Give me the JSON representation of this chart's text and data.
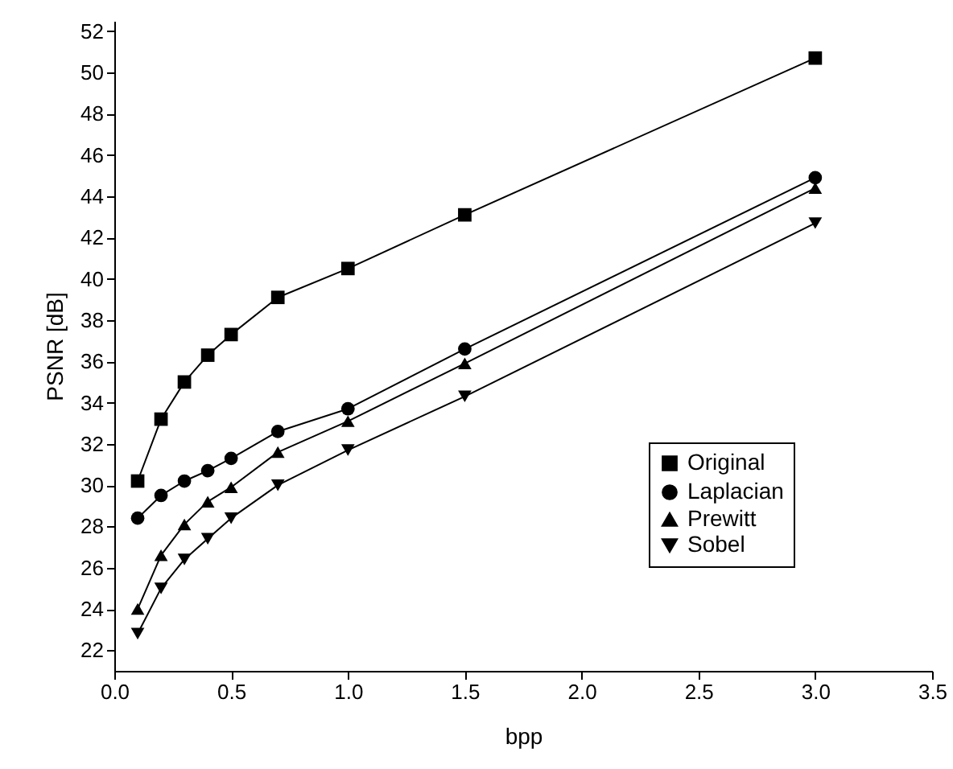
{
  "chart_data": {
    "type": "line",
    "xlabel": "bpp",
    "ylabel": "PSNR [dB]",
    "x": [
      0.1,
      0.2,
      0.3,
      0.4,
      0.5,
      0.7,
      1.0,
      1.5,
      3.0
    ],
    "xlim": [
      0,
      3.5
    ],
    "xticks": [
      {
        "value": 0,
        "label": "0.0"
      },
      {
        "value": 0.5,
        "label": "0.5"
      },
      {
        "value": 1,
        "label": "1.0"
      },
      {
        "value": 1.5,
        "label": "1.5"
      },
      {
        "value": 2,
        "label": "2.0"
      },
      {
        "value": 2.5,
        "label": "2.5"
      },
      {
        "value": 3,
        "label": "3.0"
      },
      {
        "value": 3.5,
        "label": "3.5"
      }
    ],
    "ylim": [
      21,
      52.5
    ],
    "yticks": [
      22,
      24,
      26,
      28,
      30,
      32,
      34,
      36,
      38,
      40,
      42,
      44,
      46,
      48,
      50,
      52
    ],
    "grid": false,
    "legend": "bottom right",
    "line_style": "solid",
    "series": [
      {
        "name": "Original",
        "color": "#000000",
        "marker": "square",
        "values": [
          30.2,
          33.2,
          35.0,
          36.3,
          37.3,
          39.1,
          40.5,
          43.1,
          50.7
        ]
      },
      {
        "name": "Laplacian",
        "color": "#000000",
        "marker": "circle",
        "values": [
          28.4,
          29.5,
          30.2,
          30.7,
          31.3,
          32.6,
          33.7,
          36.6,
          44.9
        ]
      },
      {
        "name": "Prewitt",
        "color": "#000000",
        "marker": "triangle",
        "values": [
          24.0,
          26.6,
          28.1,
          29.2,
          29.9,
          31.6,
          33.1,
          35.9,
          44.4
        ]
      },
      {
        "name": "Sobel",
        "color": "#000000",
        "marker": "triangle-down",
        "values": [
          22.8,
          25.0,
          26.4,
          27.4,
          28.4,
          30.0,
          31.7,
          34.3,
          42.7
        ]
      }
    ]
  }
}
